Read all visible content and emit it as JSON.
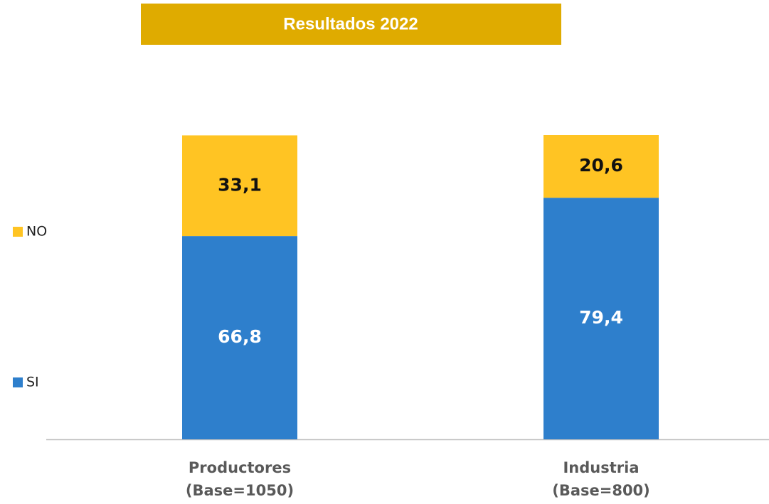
{
  "chart_data": {
    "type": "stacked_bar",
    "title": "Resultados 2022",
    "categories": [
      [
        "Productores",
        "(Base=1050)"
      ],
      [
        "Industria",
        "(Base=800)"
      ]
    ],
    "series": [
      {
        "name": "SI",
        "color": "#2e7fcc",
        "values": [
          66.8,
          79.4
        ],
        "value_labels": [
          "66,8",
          "79,4"
        ]
      },
      {
        "name": "NO",
        "color": "#ffc423",
        "values": [
          33.1,
          20.6
        ],
        "value_labels": [
          "33,1",
          "20,6"
        ]
      }
    ],
    "legend": "left"
  }
}
